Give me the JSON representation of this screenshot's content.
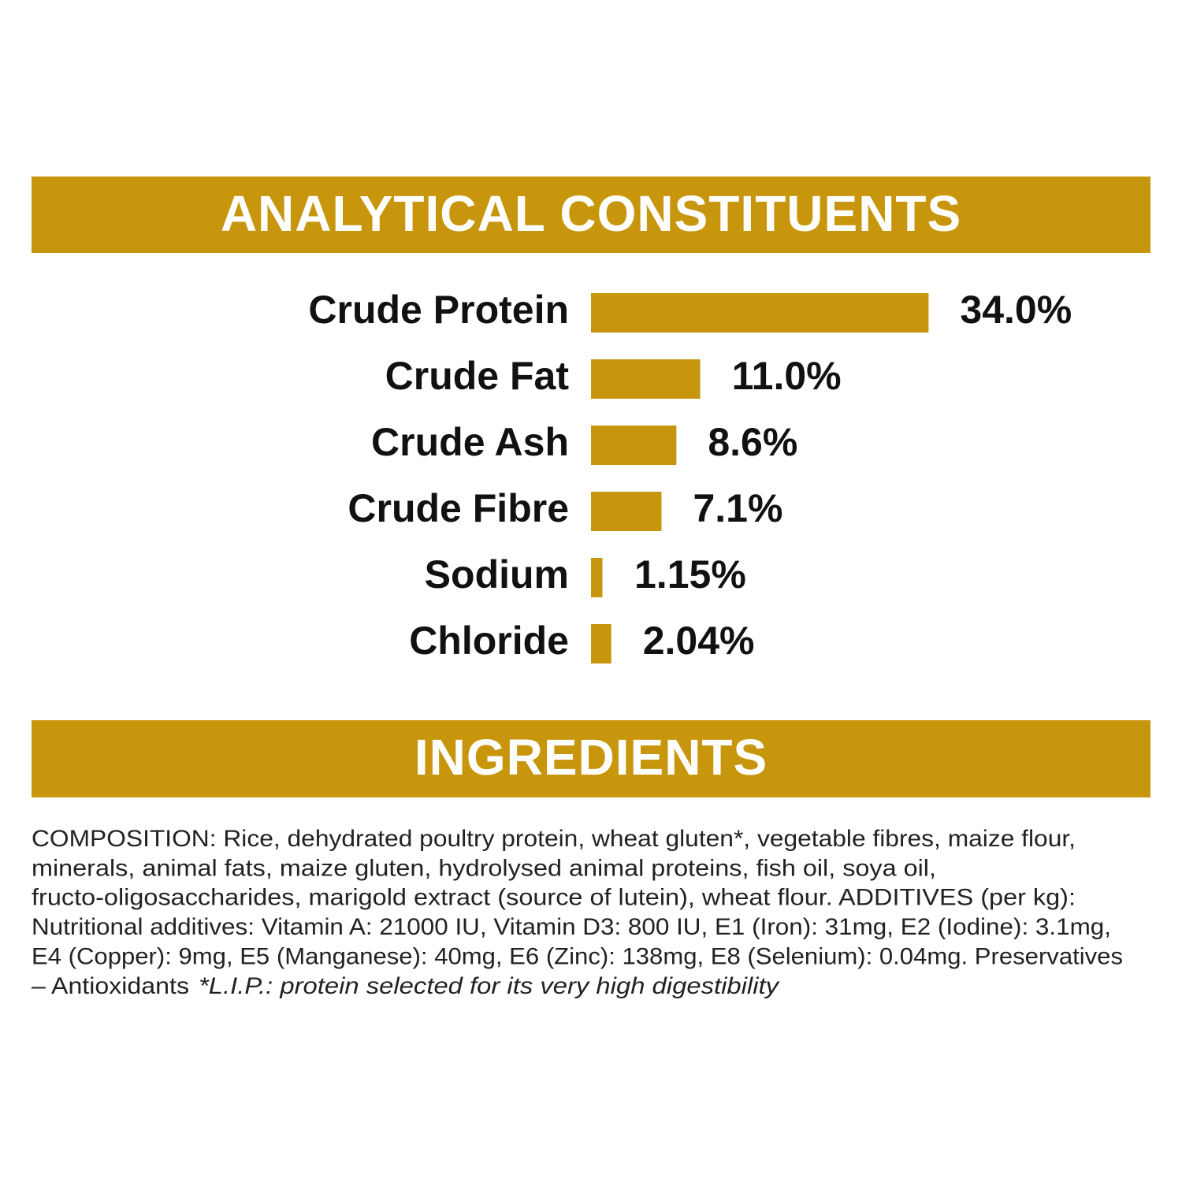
{
  "header": {
    "title": "ANALYTICAL CONSTITUENTS"
  },
  "chart_data": {
    "type": "bar",
    "orientation": "horizontal",
    "color": "#c8960c",
    "categories": [
      "Crude Protein",
      "Crude Fat",
      "Crude Ash",
      "Crude Fibre",
      "Sodium",
      "Chloride"
    ],
    "values": [
      34.0,
      11.0,
      8.6,
      7.1,
      1.15,
      2.04
    ],
    "value_labels": [
      "34.0%",
      "11.0%",
      "8.6%",
      "7.1%",
      "1.15%",
      "2.04%"
    ]
  },
  "ingredients": {
    "title": "INGREDIENTS",
    "lines": [
      "COMPOSITION: Rice, dehydrated poultry protein, wheat gluten*, vegetable fibres, maize flour,",
      "minerals, animal fats, maize gluten, hydrolysed animal proteins, fish oil, soya oil,",
      "fructo-oligosaccharides, marigold extract (source of lutein), wheat flour. ADDITIVES (per kg):",
      "Nutritional additives: Vitamin A: 21000 IU, Vitamin D3: 800 IU, E1 (Iron): 31mg, E2 (Iodine): 3.1mg,",
      "E4 (Copper): 9mg, E5 (Manganese): 40mg, E6 (Zinc): 138mg, E8 (Selenium): 0.04mg. Preservatives",
      "– Antioxidants"
    ],
    "note": "*L.I.P.: protein selected for its very high digestibility"
  }
}
